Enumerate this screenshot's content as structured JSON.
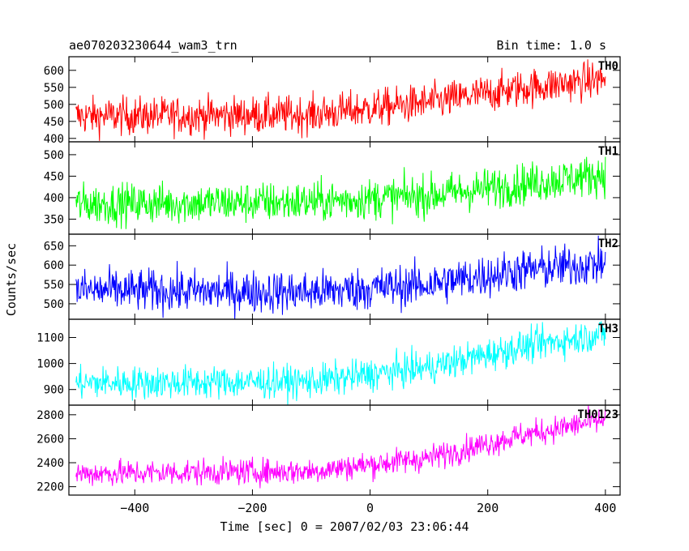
{
  "header": {
    "title": "ae070203230644_wam3_trn",
    "bin_time": "Bin time: 1.0 s"
  },
  "chart_data": {
    "type": "line",
    "xlabel": "Time [sec] 0 = 2007/02/03 23:06:44",
    "ylabel": "Counts/sec",
    "xlim": [
      -512,
      425
    ],
    "x_ticks": [
      -400,
      -200,
      0,
      200,
      400
    ],
    "x_tick_labels": [
      "−400",
      "−200",
      "0",
      "200",
      "400"
    ],
    "time_range": [
      -500,
      400
    ],
    "bin_time_s": 1.0,
    "panels": [
      {
        "name": "TH0",
        "color": "#ff0000",
        "ylim": [
          390,
          640
        ],
        "y_ticks": [
          400,
          450,
          500,
          550,
          600
        ],
        "trend": [
          [
            -500,
            465
          ],
          [
            -100,
            470
          ],
          [
            100,
            505
          ],
          [
            250,
            545
          ],
          [
            400,
            575
          ]
        ],
        "noise": 28
      },
      {
        "name": "TH1",
        "color": "#00ff00",
        "ylim": [
          315,
          530
        ],
        "y_ticks": [
          350,
          400,
          450,
          500
        ],
        "trend": [
          [
            -500,
            385
          ],
          [
            -100,
            390
          ],
          [
            100,
            405
          ],
          [
            250,
            430
          ],
          [
            400,
            455
          ]
        ],
        "noise": 24
      },
      {
        "name": "TH2",
        "color": "#0000ff",
        "ylim": [
          460,
          680
        ],
        "y_ticks": [
          500,
          550,
          600,
          650
        ],
        "trend": [
          [
            -500,
            535
          ],
          [
            -100,
            530
          ],
          [
            100,
            550
          ],
          [
            250,
            585
          ],
          [
            400,
            605
          ]
        ],
        "noise": 28
      },
      {
        "name": "TH3",
        "color": "#00ffff",
        "ylim": [
          840,
          1170
        ],
        "y_ticks": [
          900,
          1000,
          1100
        ],
        "trend": [
          [
            -500,
            925
          ],
          [
            -100,
            930
          ],
          [
            100,
            985
          ],
          [
            250,
            1060
          ],
          [
            400,
            1115
          ]
        ],
        "noise": 32
      },
      {
        "name": "TH0123",
        "color": "#ff00ff",
        "ylim": [
          2130,
          2880
        ],
        "y_ticks": [
          2200,
          2400,
          2600,
          2800
        ],
        "trend": [
          [
            -500,
            2310
          ],
          [
            -100,
            2330
          ],
          [
            100,
            2440
          ],
          [
            250,
            2620
          ],
          [
            400,
            2760
          ]
        ],
        "noise": 55
      }
    ]
  }
}
